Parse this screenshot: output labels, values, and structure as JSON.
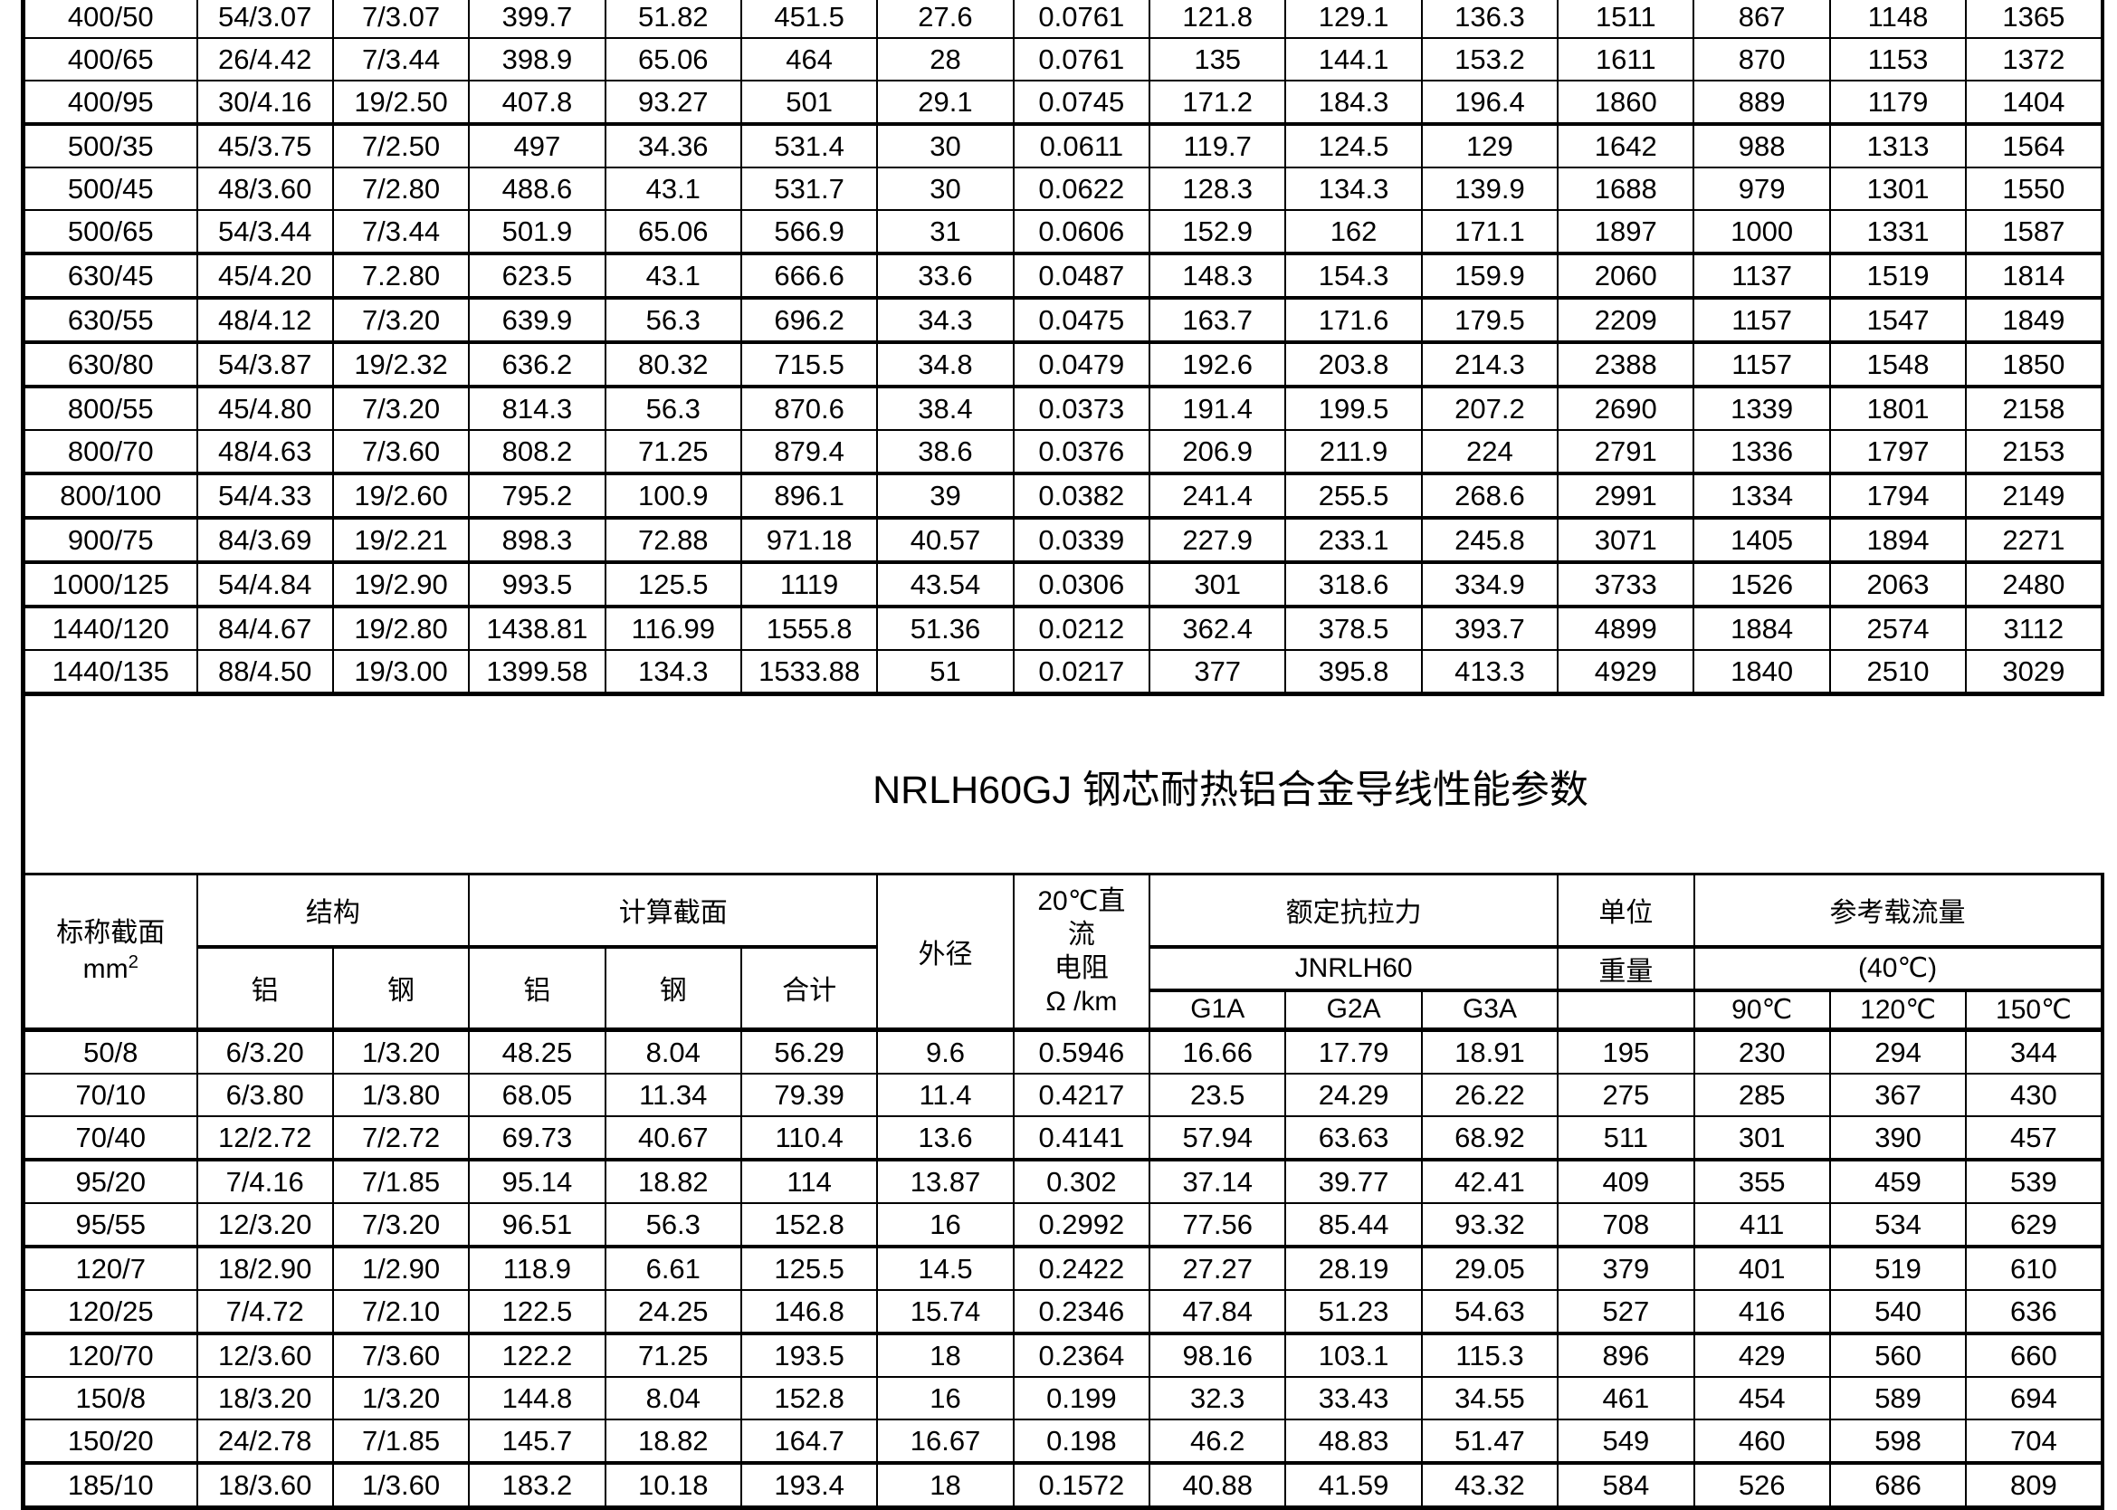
{
  "title": "NRLH60GJ 钢芯耐热铝合金导线性能参数",
  "top_table": {
    "rows": [
      [
        "400/50",
        "54/3.07",
        "7/3.07",
        "399.7",
        "51.82",
        "451.5",
        "27.6",
        "0.0761",
        "121.8",
        "129.1",
        "136.3",
        "1511",
        "867",
        "1148",
        "1365"
      ],
      [
        "400/65",
        "26/4.42",
        "7/3.44",
        "398.9",
        "65.06",
        "464",
        "28",
        "0.0761",
        "135",
        "144.1",
        "153.2",
        "1611",
        "870",
        "1153",
        "1372"
      ],
      [
        "400/95",
        "30/4.16",
        "19/2.50",
        "407.8",
        "93.27",
        "501",
        "29.1",
        "0.0745",
        "171.2",
        "184.3",
        "196.4",
        "1860",
        "889",
        "1179",
        "1404"
      ],
      [
        "500/35",
        "45/3.75",
        "7/2.50",
        "497",
        "34.36",
        "531.4",
        "30",
        "0.0611",
        "119.7",
        "124.5",
        "129",
        "1642",
        "988",
        "1313",
        "1564"
      ],
      [
        "500/45",
        "48/3.60",
        "7/2.80",
        "488.6",
        "43.1",
        "531.7",
        "30",
        "0.0622",
        "128.3",
        "134.3",
        "139.9",
        "1688",
        "979",
        "1301",
        "1550"
      ],
      [
        "500/65",
        "54/3.44",
        "7/3.44",
        "501.9",
        "65.06",
        "566.9",
        "31",
        "0.0606",
        "152.9",
        "162",
        "171.1",
        "1897",
        "1000",
        "1331",
        "1587"
      ],
      [
        "630/45",
        "45/4.20",
        "7.2.80",
        "623.5",
        "43.1",
        "666.6",
        "33.6",
        "0.0487",
        "148.3",
        "154.3",
        "159.9",
        "2060",
        "1137",
        "1519",
        "1814"
      ],
      [
        "630/55",
        "48/4.12",
        "7/3.20",
        "639.9",
        "56.3",
        "696.2",
        "34.3",
        "0.0475",
        "163.7",
        "171.6",
        "179.5",
        "2209",
        "1157",
        "1547",
        "1849"
      ],
      [
        "630/80",
        "54/3.87",
        "19/2.32",
        "636.2",
        "80.32",
        "715.5",
        "34.8",
        "0.0479",
        "192.6",
        "203.8",
        "214.3",
        "2388",
        "1157",
        "1548",
        "1850"
      ],
      [
        "800/55",
        "45/4.80",
        "7/3.20",
        "814.3",
        "56.3",
        "870.6",
        "38.4",
        "0.0373",
        "191.4",
        "199.5",
        "207.2",
        "2690",
        "1339",
        "1801",
        "2158"
      ],
      [
        "800/70",
        "48/4.63",
        "7/3.60",
        "808.2",
        "71.25",
        "879.4",
        "38.6",
        "0.0376",
        "206.9",
        "211.9",
        "224",
        "2791",
        "1336",
        "1797",
        "2153"
      ],
      [
        "800/100",
        "54/4.33",
        "19/2.60",
        "795.2",
        "100.9",
        "896.1",
        "39",
        "0.0382",
        "241.4",
        "255.5",
        "268.6",
        "2991",
        "1334",
        "1794",
        "2149"
      ],
      [
        "900/75",
        "84/3.69",
        "19/2.21",
        "898.3",
        "72.88",
        "971.18",
        "40.57",
        "0.0339",
        "227.9",
        "233.1",
        "245.8",
        "3071",
        "1405",
        "1894",
        "2271"
      ],
      [
        "1000/125",
        "54/4.84",
        "19/2.90",
        "993.5",
        "125.5",
        "1119",
        "43.54",
        "0.0306",
        "301",
        "318.6",
        "334.9",
        "3733",
        "1526",
        "2063",
        "2480"
      ],
      [
        "1440/120",
        "84/4.67",
        "19/2.80",
        "1438.81",
        "116.99",
        "1555.8",
        "51.36",
        "0.0212",
        "362.4",
        "378.5",
        "393.7",
        "4899",
        "1884",
        "2574",
        "3112"
      ],
      [
        "1440/135",
        "88/4.50",
        "19/3.00",
        "1399.58",
        "134.3",
        "1533.88",
        "51",
        "0.0217",
        "377",
        "395.8",
        "413.3",
        "4929",
        "1840",
        "2510",
        "3029"
      ]
    ]
  },
  "bottom_table": {
    "header": {
      "nominal_line1": "标称截面",
      "nominal_unit_base": "mm",
      "nominal_unit_sup": "2",
      "structure": "结构",
      "calc_section": "计算截面",
      "al": "铝",
      "steel": "钢",
      "total": "合计",
      "outer_diameter": "外径",
      "dc_resistance": "20℃直\n流\n电阻\nΩ /km",
      "rated_strength": "额定抗拉力",
      "strength_sub": "JNRLH60",
      "g1a": "G1A",
      "g2a": "G2A",
      "g3a": "G3A",
      "unit": "单位",
      "weight": "重量",
      "ampacity": "参考载流量",
      "ampacity_sub": "(40℃)",
      "t90": "90℃",
      "t120": "120℃",
      "t150": "150℃"
    },
    "rows": [
      [
        "50/8",
        "6/3.20",
        "1/3.20",
        "48.25",
        "8.04",
        "56.29",
        "9.6",
        "0.5946",
        "16.66",
        "17.79",
        "18.91",
        "195",
        "230",
        "294",
        "344"
      ],
      [
        "70/10",
        "6/3.80",
        "1/3.80",
        "68.05",
        "11.34",
        "79.39",
        "11.4",
        "0.4217",
        "23.5",
        "24.29",
        "26.22",
        "275",
        "285",
        "367",
        "430"
      ],
      [
        "70/40",
        "12/2.72",
        "7/2.72",
        "69.73",
        "40.67",
        "110.4",
        "13.6",
        "0.4141",
        "57.94",
        "63.63",
        "68.92",
        "511",
        "301",
        "390",
        "457"
      ],
      [
        "95/20",
        "7/4.16",
        "7/1.85",
        "95.14",
        "18.82",
        "114",
        "13.87",
        "0.302",
        "37.14",
        "39.77",
        "42.41",
        "409",
        "355",
        "459",
        "539"
      ],
      [
        "95/55",
        "12/3.20",
        "7/3.20",
        "96.51",
        "56.3",
        "152.8",
        "16",
        "0.2992",
        "77.56",
        "85.44",
        "93.32",
        "708",
        "411",
        "534",
        "629"
      ],
      [
        "120/7",
        "18/2.90",
        "1/2.90",
        "118.9",
        "6.61",
        "125.5",
        "14.5",
        "0.2422",
        "27.27",
        "28.19",
        "29.05",
        "379",
        "401",
        "519",
        "610"
      ],
      [
        "120/25",
        "7/4.72",
        "7/2.10",
        "122.5",
        "24.25",
        "146.8",
        "15.74",
        "0.2346",
        "47.84",
        "51.23",
        "54.63",
        "527",
        "416",
        "540",
        "636"
      ],
      [
        "120/70",
        "12/3.60",
        "7/3.60",
        "122.2",
        "71.25",
        "193.5",
        "18",
        "0.2364",
        "98.16",
        "103.1",
        "115.3",
        "896",
        "429",
        "560",
        "660"
      ],
      [
        "150/8",
        "18/3.20",
        "1/3.20",
        "144.8",
        "8.04",
        "152.8",
        "16",
        "0.199",
        "32.3",
        "33.43",
        "34.55",
        "461",
        "454",
        "589",
        "694"
      ],
      [
        "150/20",
        "24/2.78",
        "7/1.85",
        "145.7",
        "18.82",
        "164.7",
        "16.67",
        "0.198",
        "46.2",
        "48.83",
        "51.47",
        "549",
        "460",
        "598",
        "704"
      ],
      [
        "185/10",
        "18/3.60",
        "1/3.60",
        "183.2",
        "10.18",
        "193.4",
        "18",
        "0.1572",
        "40.88",
        "41.59",
        "43.32",
        "584",
        "526",
        "686",
        "809"
      ]
    ]
  }
}
